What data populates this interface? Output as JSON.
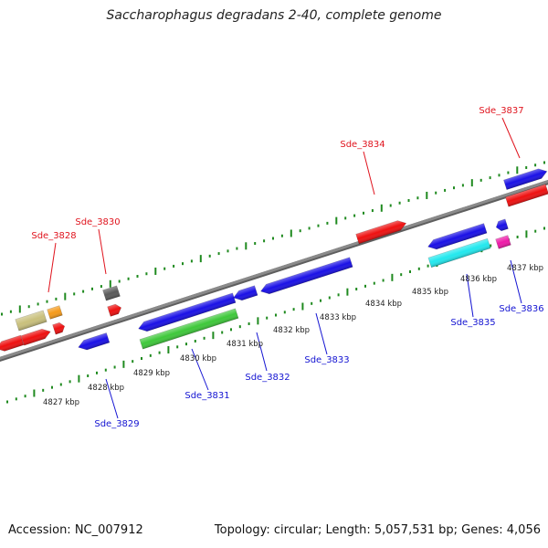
{
  "title": "Saccharophagus degradans 2-40, complete genome",
  "footer": {
    "accession": "Accession: NC_007912",
    "topology": "Topology: circular; Length: 5,057,531 bp; Genes: 4,056"
  },
  "colors": {
    "genome_line": "#8a8a8a",
    "tick": "#1f8a1f",
    "forward_label": "#e0141e",
    "reverse_label": "#1414d2",
    "blue_gene": "#1a10e6",
    "red_gene": "#ee1010",
    "green_gene": "#3ec83a",
    "cyan_gene": "#22e8ee",
    "magenta_gene": "#ee1aa8",
    "olive_gene": "#c9c07c",
    "orange_gene": "#f59a1a",
    "gray_gene": "#5a5a5a"
  },
  "kbp_labels": [
    "4827 kbp",
    "4828 kbp",
    "4829 kbp",
    "4830 kbp",
    "4831 kbp",
    "4832 kbp",
    "4833 kbp",
    "4834 kbp",
    "4835 kbp",
    "4836 kbp",
    "4837 kbp"
  ],
  "gene_labels": [
    {
      "text": "Sde_3828",
      "strand": "forward"
    },
    {
      "text": "Sde_3830",
      "strand": "forward"
    },
    {
      "text": "Sde_3834",
      "strand": "forward"
    },
    {
      "text": "Sde_3837",
      "strand": "forward"
    },
    {
      "text": "Sde_3829",
      "strand": "reverse"
    },
    {
      "text": "Sde_3831",
      "strand": "reverse"
    },
    {
      "text": "Sde_3832",
      "strand": "reverse"
    },
    {
      "text": "Sde_3833",
      "strand": "reverse"
    },
    {
      "text": "Sde_3835",
      "strand": "reverse"
    },
    {
      "text": "Sde_3836",
      "strand": "reverse"
    }
  ]
}
